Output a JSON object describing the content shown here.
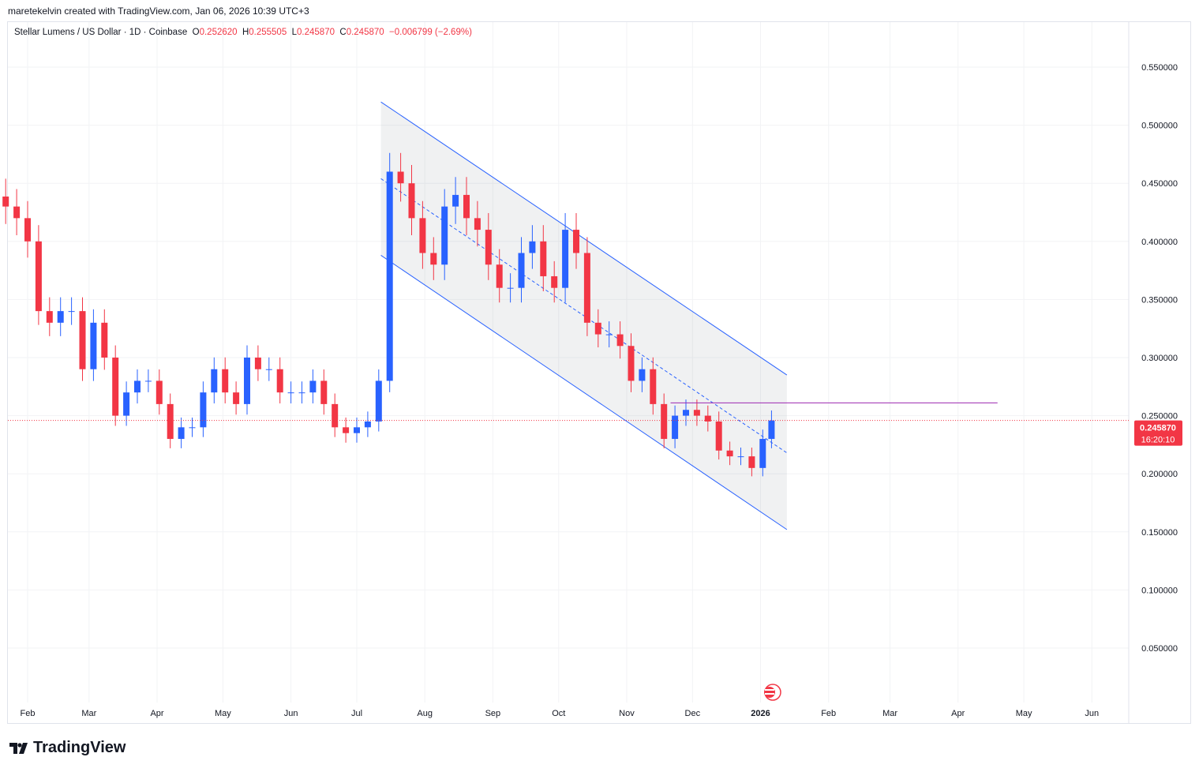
{
  "credit": "maretekelvin created with TradingView.com, Jan 06, 2026 10:39 UTC+3",
  "legend": {
    "symbol": "Stellar Lumens / US Dollar · 1D · Coinbase",
    "o_label": "O",
    "o": "0.252620",
    "h_label": "H",
    "h": "0.255505",
    "l_label": "L",
    "l": "0.245870",
    "c_label": "C",
    "c": "0.245870",
    "change": "−0.006799 (−2.69%)"
  },
  "price_label": {
    "price": "0.245870",
    "countdown": "16:20:10"
  },
  "logo": "TradingView",
  "colors": {
    "up": "#2962ff",
    "down": "#f23645",
    "channel": "#2962ff",
    "level": "#9c27b0"
  },
  "chart_data": {
    "type": "candlestick",
    "y_ticks": [
      "0.550000",
      "0.500000",
      "0.450000",
      "0.400000",
      "0.350000",
      "0.300000",
      "0.250000",
      "0.200000",
      "0.150000",
      "0.100000",
      "0.050000"
    ],
    "ylim": [
      0.0,
      0.58
    ],
    "x_ticks": [
      {
        "date": "2025-02-01",
        "label": "Feb"
      },
      {
        "date": "2025-03-01",
        "label": "Mar"
      },
      {
        "date": "2025-04-01",
        "label": "Apr"
      },
      {
        "date": "2025-05-01",
        "label": "May"
      },
      {
        "date": "2025-06-01",
        "label": "Jun"
      },
      {
        "date": "2025-07-01",
        "label": "Jul"
      },
      {
        "date": "2025-08-01",
        "label": "Aug"
      },
      {
        "date": "2025-09-01",
        "label": "Sep"
      },
      {
        "date": "2025-10-01",
        "label": "Oct"
      },
      {
        "date": "2025-11-01",
        "label": "Nov"
      },
      {
        "date": "2025-12-01",
        "label": "Dec"
      },
      {
        "date": "2026-01-01",
        "label": "2026"
      },
      {
        "date": "2026-02-01",
        "label": "Feb"
      },
      {
        "date": "2026-03-01",
        "label": "Mar"
      },
      {
        "date": "2026-04-01",
        "label": "Apr"
      },
      {
        "date": "2026-05-01",
        "label": "May"
      },
      {
        "date": "2026-06-01",
        "label": "Jun"
      }
    ],
    "closes": [
      [
        "2025-01-22",
        0.43
      ],
      [
        "2025-01-27",
        0.42
      ],
      [
        "2025-02-01",
        0.4
      ],
      [
        "2025-02-06",
        0.34
      ],
      [
        "2025-02-11",
        0.33
      ],
      [
        "2025-02-16",
        0.34
      ],
      [
        "2025-02-21",
        0.34
      ],
      [
        "2025-02-26",
        0.29
      ],
      [
        "2025-03-03",
        0.33
      ],
      [
        "2025-03-08",
        0.3
      ],
      [
        "2025-03-13",
        0.25
      ],
      [
        "2025-03-18",
        0.27
      ],
      [
        "2025-03-23",
        0.28
      ],
      [
        "2025-03-28",
        0.28
      ],
      [
        "2025-04-02",
        0.26
      ],
      [
        "2025-04-07",
        0.23
      ],
      [
        "2025-04-12",
        0.24
      ],
      [
        "2025-04-17",
        0.24
      ],
      [
        "2025-04-22",
        0.27
      ],
      [
        "2025-04-27",
        0.29
      ],
      [
        "2025-05-02",
        0.27
      ],
      [
        "2025-05-07",
        0.26
      ],
      [
        "2025-05-12",
        0.3
      ],
      [
        "2025-05-17",
        0.29
      ],
      [
        "2025-05-22",
        0.29
      ],
      [
        "2025-05-27",
        0.27
      ],
      [
        "2025-06-01",
        0.27
      ],
      [
        "2025-06-06",
        0.27
      ],
      [
        "2025-06-11",
        0.28
      ],
      [
        "2025-06-16",
        0.26
      ],
      [
        "2025-06-21",
        0.24
      ],
      [
        "2025-06-26",
        0.235
      ],
      [
        "2025-07-01",
        0.24
      ],
      [
        "2025-07-06",
        0.245
      ],
      [
        "2025-07-11",
        0.28
      ],
      [
        "2025-07-16",
        0.46
      ],
      [
        "2025-07-21",
        0.45
      ],
      [
        "2025-07-26",
        0.42
      ],
      [
        "2025-07-31",
        0.39
      ],
      [
        "2025-08-05",
        0.38
      ],
      [
        "2025-08-10",
        0.43
      ],
      [
        "2025-08-15",
        0.44
      ],
      [
        "2025-08-20",
        0.42
      ],
      [
        "2025-08-25",
        0.41
      ],
      [
        "2025-08-30",
        0.38
      ],
      [
        "2025-09-04",
        0.36
      ],
      [
        "2025-09-09",
        0.36
      ],
      [
        "2025-09-14",
        0.39
      ],
      [
        "2025-09-19",
        0.4
      ],
      [
        "2025-09-24",
        0.37
      ],
      [
        "2025-09-29",
        0.36
      ],
      [
        "2025-10-04",
        0.41
      ],
      [
        "2025-10-09",
        0.39
      ],
      [
        "2025-10-14",
        0.33
      ],
      [
        "2025-10-19",
        0.32
      ],
      [
        "2025-10-24",
        0.32
      ],
      [
        "2025-10-29",
        0.31
      ],
      [
        "2025-11-03",
        0.28
      ],
      [
        "2025-11-08",
        0.29
      ],
      [
        "2025-11-13",
        0.26
      ],
      [
        "2025-11-18",
        0.23
      ],
      [
        "2025-11-23",
        0.25
      ],
      [
        "2025-11-28",
        0.255
      ],
      [
        "2025-12-03",
        0.25
      ],
      [
        "2025-12-08",
        0.245
      ],
      [
        "2025-12-13",
        0.22
      ],
      [
        "2025-12-18",
        0.215
      ],
      [
        "2025-12-23",
        0.215
      ],
      [
        "2025-12-28",
        0.205
      ],
      [
        "2026-01-02",
        0.23
      ],
      [
        "2026-01-06",
        0.24587
      ]
    ],
    "channel": {
      "start": "2025-07-12",
      "end": "2026-01-13",
      "upper": [
        0.52,
        0.285
      ],
      "middle": [
        0.454,
        0.218
      ],
      "lower": [
        0.388,
        0.152
      ]
    },
    "horizontal_level": {
      "value": 0.261,
      "start": "2025-11-21",
      "end": "2026-04-19"
    },
    "last_price": 0.24587
  }
}
